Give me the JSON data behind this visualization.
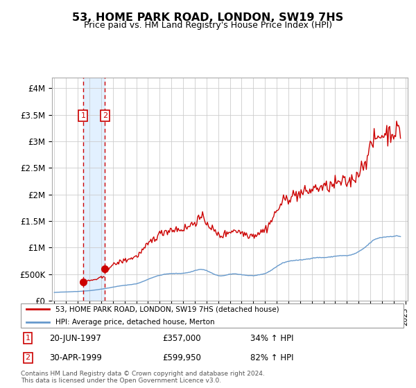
{
  "title": "53, HOME PARK ROAD, LONDON, SW19 7HS",
  "subtitle": "Price paid vs. HM Land Registry's House Price Index (HPI)",
  "legend_line1": "53, HOME PARK ROAD, LONDON, SW19 7HS (detached house)",
  "legend_line2": "HPI: Average price, detached house, Merton",
  "annotation1_date": "20-JUN-1997",
  "annotation1_price": "£357,000",
  "annotation1_hpi": "34% ↑ HPI",
  "annotation1_year": 1997.4589,
  "annotation1_value": 357000,
  "annotation2_date": "30-APR-1999",
  "annotation2_price": "£599,950",
  "annotation2_hpi": "82% ↑ HPI",
  "annotation2_year": 1999.3288,
  "annotation2_value": 599950,
  "footnote": "Contains HM Land Registry data © Crown copyright and database right 2024.\nThis data is licensed under the Open Government Licence v3.0.",
  "red_color": "#cc0000",
  "blue_color": "#6699cc",
  "shade_color": "#ddeeff",
  "grid_color": "#cccccc",
  "ylim": [
    0,
    4200000
  ],
  "yticks": [
    0,
    500000,
    1000000,
    1500000,
    2000000,
    2500000,
    3000000,
    3500000,
    4000000
  ],
  "ytick_labels": [
    "£0",
    "£500K",
    "£1M",
    "£1.5M",
    "£2M",
    "£2.5M",
    "£3M",
    "£3.5M",
    "£4M"
  ],
  "xlim_left": 1994.8,
  "xlim_right": 2025.2,
  "xtick_years": [
    1995,
    1996,
    1997,
    1998,
    1999,
    2000,
    2001,
    2002,
    2003,
    2004,
    2005,
    2006,
    2007,
    2008,
    2009,
    2010,
    2011,
    2012,
    2013,
    2014,
    2015,
    2016,
    2017,
    2018,
    2019,
    2020,
    2021,
    2022,
    2023,
    2024,
    2025
  ]
}
